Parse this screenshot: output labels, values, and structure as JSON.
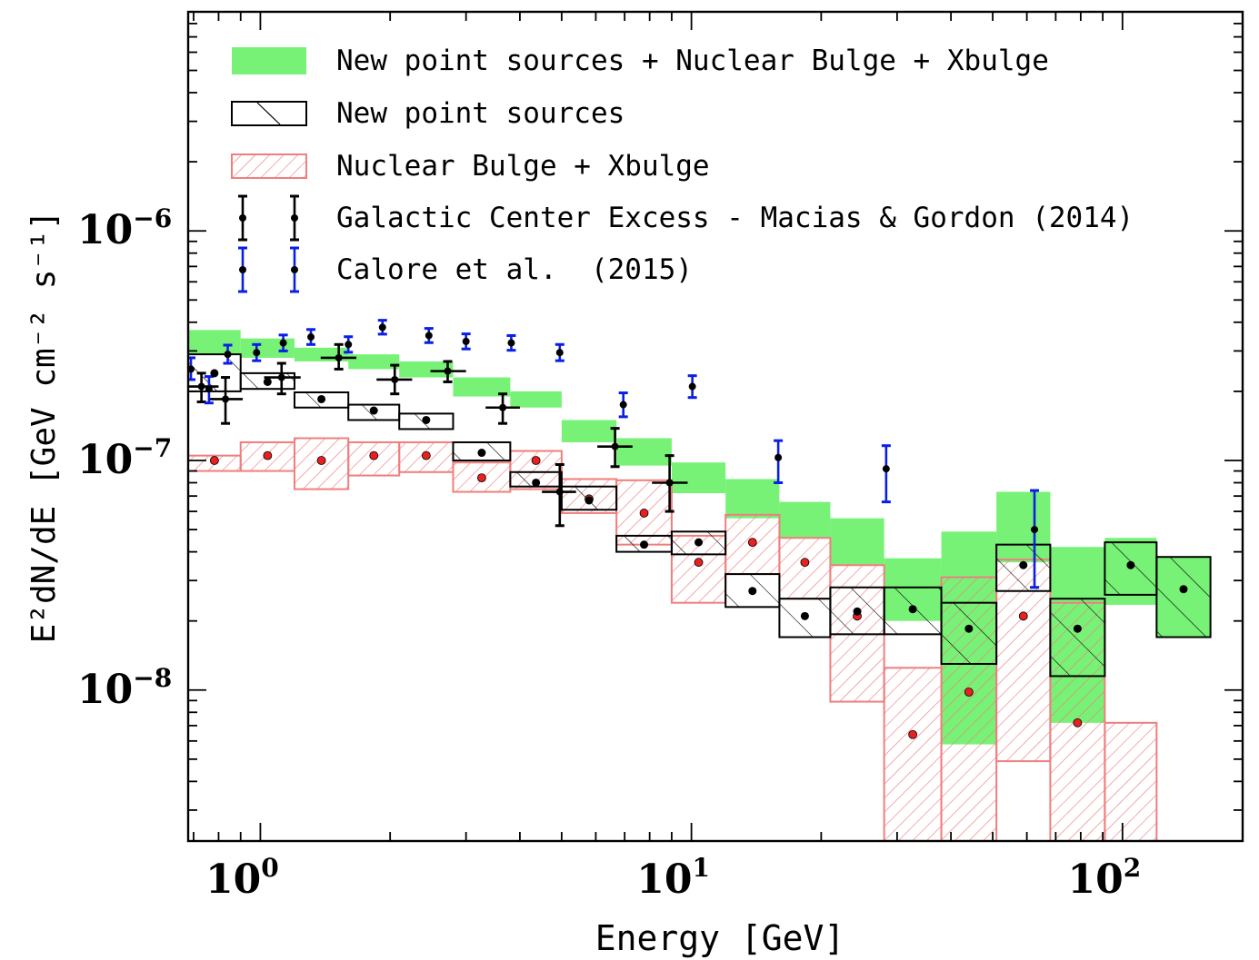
{
  "chart_data": {
    "type": "area",
    "xlabel": "Energy [GeV]",
    "ylabel": "E²dN/dE [GeV cm⁻² s⁻¹]",
    "xscale": "log",
    "yscale": "log",
    "xlim": [
      0.68,
      190
    ],
    "ylim": [
      2.2e-09,
      9e-06
    ],
    "x_tick_labels": [
      {
        "base": "10",
        "exp": "0",
        "value": 1
      },
      {
        "base": "10",
        "exp": "1",
        "value": 10
      },
      {
        "base": "10",
        "exp": "2",
        "value": 100
      }
    ],
    "y_tick_labels": [
      {
        "base": "10",
        "exp": "−6",
        "value": 1e-06
      },
      {
        "base": "10",
        "exp": "−7",
        "value": 1e-07
      },
      {
        "base": "10",
        "exp": "−8",
        "value": 1e-08
      }
    ],
    "legend_position": "top-left",
    "legend": [
      {
        "key": "combined",
        "label": "New point sources + Nuclear Bulge + Xbulge"
      },
      {
        "key": "nps",
        "label": "New point sources"
      },
      {
        "key": "bulge",
        "label": "Nuclear Bulge + Xbulge"
      },
      {
        "key": "gce",
        "label": "Galactic Center Excess - Macias & Gordon (2014)"
      },
      {
        "key": "calore",
        "label": "Calore et al.  (2015)"
      }
    ],
    "colors": {
      "combined": "#77f277",
      "nps": "#000000",
      "bulge": "#f07e7e",
      "bulge_point": "#e82020",
      "gce": "#000000",
      "calore": "#0a1fe6",
      "point": "#000000"
    },
    "series": [
      {
        "key": "combined",
        "style": "filled band",
        "bins": [
          {
            "x0": 0.68,
            "x1": 0.9,
            "y0": 2.9e-07,
            "y1": 3.7e-07
          },
          {
            "x0": 0.9,
            "x1": 1.2,
            "y0": 2.8e-07,
            "y1": 3.4e-07
          },
          {
            "x0": 1.2,
            "x1": 1.6,
            "y0": 2.7e-07,
            "y1": 3.1e-07
          },
          {
            "x0": 1.6,
            "x1": 2.1,
            "y0": 2.5e-07,
            "y1": 2.9e-07
          },
          {
            "x0": 2.1,
            "x1": 2.8,
            "y0": 2.3e-07,
            "y1": 2.7e-07
          },
          {
            "x0": 2.8,
            "x1": 3.8,
            "y0": 1.9e-07,
            "y1": 2.3e-07
          },
          {
            "x0": 3.8,
            "x1": 5.0,
            "y0": 1.7e-07,
            "y1": 2e-07
          },
          {
            "x0": 5.0,
            "x1": 6.7,
            "y0": 1.2e-07,
            "y1": 1.5e-07
          },
          {
            "x0": 6.7,
            "x1": 9.0,
            "y0": 9.5e-08,
            "y1": 1.25e-07
          },
          {
            "x0": 9.0,
            "x1": 12.0,
            "y0": 7.2e-08,
            "y1": 9.8e-08
          },
          {
            "x0": 12.0,
            "x1": 16.0,
            "y0": 5.6e-08,
            "y1": 8.3e-08
          },
          {
            "x0": 16.0,
            "x1": 21.0,
            "y0": 4.6e-08,
            "y1": 6.6e-08
          },
          {
            "x0": 21.0,
            "x1": 28.0,
            "y0": 3.5e-08,
            "y1": 5.6e-08
          },
          {
            "x0": 28.0,
            "x1": 38.0,
            "y0": 2e-08,
            "y1": 3.75e-08
          },
          {
            "x0": 38.0,
            "x1": 51.0,
            "y0": 5.8e-09,
            "y1": 4.9e-08
          },
          {
            "x0": 51.0,
            "x1": 68.0,
            "y0": 3.6e-08,
            "y1": 7.3e-08
          },
          {
            "x0": 68.0,
            "x1": 91.0,
            "y0": 7.2e-09,
            "y1": 4.2e-08
          },
          {
            "x0": 91.0,
            "x1": 120.0,
            "y0": 2.35e-08,
            "y1": 4.6e-08
          },
          {
            "x0": 120.0,
            "x1": 160.0,
            "y0": 1.7e-08,
            "y1": 3.8e-08
          }
        ]
      },
      {
        "key": "nps",
        "style": "outlined box, sparse back-hatch",
        "bins": [
          {
            "x0": 0.68,
            "x1": 0.9,
            "y0": 2e-07,
            "y1": 2.9e-07,
            "y": 2.4e-07
          },
          {
            "x0": 0.9,
            "x1": 1.2,
            "y0": 2.05e-07,
            "y1": 2.4e-07,
            "y": 2.2e-07
          },
          {
            "x0": 1.2,
            "x1": 1.6,
            "y0": 1.7e-07,
            "y1": 1.98e-07,
            "y": 1.85e-07
          },
          {
            "x0": 1.6,
            "x1": 2.1,
            "y0": 1.5e-07,
            "y1": 1.75e-07,
            "y": 1.65e-07
          },
          {
            "x0": 2.1,
            "x1": 2.8,
            "y0": 1.37e-07,
            "y1": 1.6e-07,
            "y": 1.5e-07
          },
          {
            "x0": 2.8,
            "x1": 3.8,
            "y0": 1e-07,
            "y1": 1.2e-07,
            "y": 1.08e-07
          },
          {
            "x0": 3.8,
            "x1": 5.0,
            "y0": 7.7e-08,
            "y1": 8.9e-08,
            "y": 8e-08
          },
          {
            "x0": 5.0,
            "x1": 6.7,
            "y0": 6.1e-08,
            "y1": 7.7e-08,
            "y": 6.7e-08
          },
          {
            "x0": 6.7,
            "x1": 9.0,
            "y0": 4e-08,
            "y1": 4.7e-08,
            "y": 4.3e-08
          },
          {
            "x0": 9.0,
            "x1": 12.0,
            "y0": 3.9e-08,
            "y1": 4.9e-08,
            "y": 4.4e-08
          },
          {
            "x0": 12.0,
            "x1": 16.0,
            "y0": 2.3e-08,
            "y1": 3.2e-08,
            "y": 2.7e-08
          },
          {
            "x0": 16.0,
            "x1": 21.0,
            "y0": 1.7e-08,
            "y1": 2.5e-08,
            "y": 2.1e-08
          },
          {
            "x0": 21.0,
            "x1": 28.0,
            "y0": 1.75e-08,
            "y1": 2.8e-08,
            "y": 2.2e-08
          },
          {
            "x0": 28.0,
            "x1": 38.0,
            "y0": 1.75e-08,
            "y1": 2.8e-08,
            "y": 2.25e-08
          },
          {
            "x0": 38.0,
            "x1": 51.0,
            "y0": 1.3e-08,
            "y1": 2.4e-08,
            "y": 1.85e-08
          },
          {
            "x0": 51.0,
            "x1": 68.0,
            "y0": 2.7e-08,
            "y1": 4.3e-08,
            "y": 3.5e-08
          },
          {
            "x0": 68.0,
            "x1": 91.0,
            "y0": 1.15e-08,
            "y1": 2.5e-08,
            "y": 1.85e-08
          },
          {
            "x0": 91.0,
            "x1": 120.0,
            "y0": 2.6e-08,
            "y1": 4.4e-08,
            "y": 3.5e-08
          },
          {
            "x0": 120.0,
            "x1": 160.0,
            "y0": 1.7e-08,
            "y1": 3.8e-08,
            "y": 2.75e-08
          }
        ]
      },
      {
        "key": "bulge",
        "style": "outlined box, dense forward-hatch",
        "bins": [
          {
            "x0": 0.68,
            "x1": 0.9,
            "y0": 9e-08,
            "y1": 1.05e-07,
            "y": 1e-07
          },
          {
            "x0": 0.9,
            "x1": 1.2,
            "y0": 9e-08,
            "y1": 1.2e-07,
            "y": 1.05e-07
          },
          {
            "x0": 1.2,
            "x1": 1.6,
            "y0": 7.5e-08,
            "y1": 1.25e-07,
            "y": 1e-07
          },
          {
            "x0": 1.6,
            "x1": 2.1,
            "y0": 8.6e-08,
            "y1": 1.2e-07,
            "y": 1.05e-07
          },
          {
            "x0": 2.1,
            "x1": 2.8,
            "y0": 8.9e-08,
            "y1": 1.2e-07,
            "y": 1.05e-07
          },
          {
            "x0": 2.8,
            "x1": 3.8,
            "y0": 7.3e-08,
            "y1": 9.8e-08,
            "y": 8.4e-08
          },
          {
            "x0": 3.8,
            "x1": 5.0,
            "y0": 7.5e-08,
            "y1": 1.1e-07,
            "y": 1e-07
          },
          {
            "x0": 5.0,
            "x1": 6.7,
            "y0": 5.9e-08,
            "y1": 8.3e-08,
            "y": 6.8e-08
          },
          {
            "x0": 6.7,
            "x1": 9.0,
            "y0": 4.3e-08,
            "y1": 8.2e-08,
            "y": 5.9e-08
          },
          {
            "x0": 9.0,
            "x1": 12.0,
            "y0": 2.4e-08,
            "y1": 4.7e-08,
            "y": 3.6e-08
          },
          {
            "x0": 12.0,
            "x1": 16.0,
            "y0": 3.2e-08,
            "y1": 5.8e-08,
            "y": 4.4e-08
          },
          {
            "x0": 16.0,
            "x1": 21.0,
            "y0": 2.5e-08,
            "y1": 4.6e-08,
            "y": 3.6e-08
          },
          {
            "x0": 21.0,
            "x1": 28.0,
            "y0": 8.9e-09,
            "y1": 3.5e-08,
            "y": 2.1e-08
          },
          {
            "x0": 28.0,
            "x1": 38.0,
            "y0": 2.2e-09,
            "y1": 1.25e-08,
            "y": 6.4e-09
          },
          {
            "x0": 38.0,
            "x1": 51.0,
            "y0": 2.2e-09,
            "y1": 3.1e-08,
            "y": 9.8e-09
          },
          {
            "x0": 51.0,
            "x1": 68.0,
            "y0": 4.9e-09,
            "y1": 3.7e-08,
            "y": 2.1e-08
          },
          {
            "x0": 68.0,
            "x1": 91.0,
            "y0": 2.2e-09,
            "y1": 2.4e-08,
            "y": 7.2e-09
          },
          {
            "x0": 91.0,
            "x1": 120.0,
            "y0": 2.2e-09,
            "y1": 7.2e-09,
            "y": null
          }
        ]
      },
      {
        "key": "gce",
        "style": "points with x and y error bars",
        "points": [
          {
            "x": 0.73,
            "y": 2.1e-07,
            "xlo": 0.68,
            "xhi": 0.8,
            "ylo": 1.8e-07,
            "yhi": 2.4e-07
          },
          {
            "x": 0.83,
            "y": 1.85e-07,
            "xlo": 0.76,
            "xhi": 0.91,
            "ylo": 1.45e-07,
            "yhi": 2.3e-07
          },
          {
            "x": 1.12,
            "y": 2.3e-07,
            "xlo": 1.02,
            "xhi": 1.24,
            "ylo": 1.95e-07,
            "yhi": 2.65e-07
          },
          {
            "x": 1.52,
            "y": 2.8e-07,
            "xlo": 1.38,
            "xhi": 1.67,
            "ylo": 2.5e-07,
            "yhi": 3.2e-07
          },
          {
            "x": 2.05,
            "y": 2.25e-07,
            "xlo": 1.86,
            "xhi": 2.25,
            "ylo": 1.95e-07,
            "yhi": 2.6e-07
          },
          {
            "x": 2.72,
            "y": 2.45e-07,
            "xlo": 2.48,
            "xhi": 3.0,
            "ylo": 2.2e-07,
            "yhi": 2.7e-07
          },
          {
            "x": 3.65,
            "y": 1.7e-07,
            "xlo": 3.33,
            "xhi": 4.0,
            "ylo": 1.45e-07,
            "yhi": 1.95e-07
          },
          {
            "x": 4.95,
            "y": 7.3e-08,
            "xlo": 4.5,
            "xhi": 5.4,
            "ylo": 5.2e-08,
            "yhi": 9.6e-08
          },
          {
            "x": 6.65,
            "y": 1.15e-07,
            "xlo": 6.05,
            "xhi": 7.3,
            "ylo": 9.4e-08,
            "yhi": 1.38e-07
          },
          {
            "x": 8.9,
            "y": 8e-08,
            "xlo": 8.1,
            "xhi": 9.8,
            "ylo": 6e-08,
            "yhi": 1.05e-07
          }
        ]
      },
      {
        "key": "calore",
        "style": "points with y error bars",
        "points": [
          {
            "x": 0.69,
            "y": 2.5e-07,
            "ylo": 2.25e-07,
            "yhi": 2.8e-07
          },
          {
            "x": 0.76,
            "y": 2.05e-07,
            "ylo": 1.78e-07,
            "yhi": 2.32e-07
          },
          {
            "x": 0.84,
            "y": 2.9e-07,
            "ylo": 2.65e-07,
            "yhi": 3.18e-07
          },
          {
            "x": 0.98,
            "y": 2.95e-07,
            "ylo": 2.72e-07,
            "yhi": 3.2e-07
          },
          {
            "x": 1.13,
            "y": 3.25e-07,
            "ylo": 3e-07,
            "yhi": 3.52e-07
          },
          {
            "x": 1.31,
            "y": 3.45e-07,
            "ylo": 3.2e-07,
            "yhi": 3.72e-07
          },
          {
            "x": 1.6,
            "y": 3.2e-07,
            "ylo": 2.96e-07,
            "yhi": 3.46e-07
          },
          {
            "x": 1.92,
            "y": 3.8e-07,
            "ylo": 3.55e-07,
            "yhi": 4.08e-07
          },
          {
            "x": 2.46,
            "y": 3.5e-07,
            "ylo": 3.26e-07,
            "yhi": 3.76e-07
          },
          {
            "x": 3.0,
            "y": 3.3e-07,
            "ylo": 3.06e-07,
            "yhi": 3.56e-07
          },
          {
            "x": 3.82,
            "y": 3.25e-07,
            "ylo": 3.02e-07,
            "yhi": 3.5e-07
          },
          {
            "x": 4.95,
            "y": 2.95e-07,
            "ylo": 2.72e-07,
            "yhi": 3.2e-07
          },
          {
            "x": 6.95,
            "y": 1.75e-07,
            "ylo": 1.55e-07,
            "yhi": 1.97e-07
          },
          {
            "x": 10.05,
            "y": 2.1e-07,
            "ylo": 1.88e-07,
            "yhi": 2.34e-07
          },
          {
            "x": 15.9,
            "y": 1.03e-07,
            "ylo": 8e-08,
            "yhi": 1.22e-07
          },
          {
            "x": 28.3,
            "y": 9.2e-08,
            "ylo": 6.6e-08,
            "yhi": 1.16e-07
          },
          {
            "x": 62.5,
            "y": 5e-08,
            "ylo": 2.8e-08,
            "yhi": 7.4e-08
          }
        ]
      }
    ]
  }
}
